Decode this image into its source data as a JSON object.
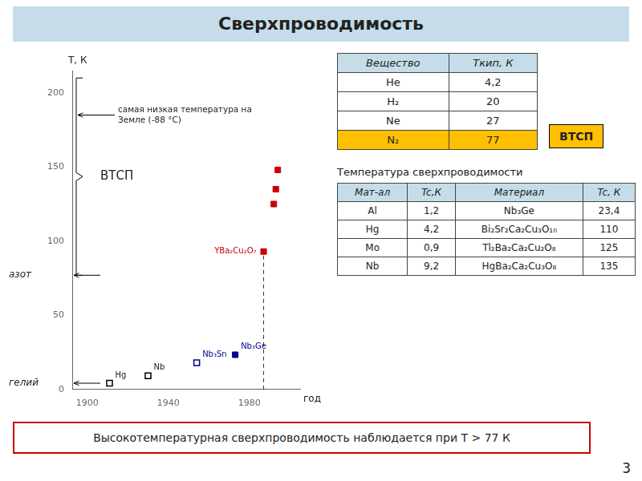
{
  "title": "Сверхпроводимость",
  "title_bg": "#c5dde8",
  "page_bg": "#ffffff",
  "chart_data": {
    "type": "scatter",
    "x_label": "год",
    "y_label": "Т, К",
    "xlim": [
      1893,
      2005
    ],
    "ylim": [
      0,
      215
    ],
    "xticks": [
      1900,
      1940,
      1980
    ],
    "yticks": [
      0,
      50,
      100,
      150,
      200
    ],
    "grid": false,
    "series": [
      {
        "color": "#000000",
        "marker": "square_open",
        "x": [
          1911,
          1930
        ],
        "values": [
          4.2,
          9.2
        ]
      },
      {
        "color": "#00008B",
        "marker": "square_open",
        "x": [
          1954
        ],
        "values": [
          18.0
        ]
      },
      {
        "color": "#00008B",
        "marker": "square",
        "x": [
          1973
        ],
        "values": [
          23.4
        ]
      },
      {
        "color": "#cc0000",
        "marker": "square",
        "x": [
          1987,
          1992,
          1993,
          1994
        ],
        "values": [
          93,
          125,
          135,
          148
        ]
      }
    ],
    "point_labels": [
      {
        "text": "Hg",
        "x": 1911,
        "y": 4.2
      },
      {
        "text": "Nb",
        "x": 1930,
        "y": 9.2
      },
      {
        "text": "Nb₃Sn",
        "x": 1954,
        "y": 18.0,
        "color": "#00008B"
      },
      {
        "text": "Nb₃Ge",
        "x": 1973,
        "y": 23.4,
        "color": "#00008B"
      },
      {
        "text": "YBa₂Cu₂O₇",
        "x": 1987,
        "y": 93,
        "color": "#cc0000"
      }
    ],
    "drop_line": {
      "x": 1987,
      "y": 93
    },
    "reference_lines": [
      {
        "y": 77,
        "label": "азот"
      },
      {
        "y": 4.2,
        "label": "гелий"
      }
    ],
    "range_brace": {
      "from": 77,
      "to": 210,
      "label": "ВТСП"
    },
    "arrow_note": {
      "y": 185,
      "text": "самая низкая температура на\nЗемле (-88 °C)"
    }
  },
  "tables": [
    {
      "header": [
        "Вещество",
        "Tкип, К"
      ],
      "header_color": "#c5dde8",
      "rows": [
        [
          "He",
          "4,2"
        ],
        [
          "H₂",
          "20"
        ],
        [
          "Ne",
          "27"
        ],
        [
          "N₂",
          "77"
        ]
      ],
      "highlight_row": 3,
      "highlight_color": "#FFC000"
    },
    {
      "title": "Температура сверхпроводимости",
      "header": [
        "Мат-ал",
        "Tc,К",
        "Материал",
        "Tc, К"
      ],
      "header_color": "#c5dde8",
      "rows": [
        [
          "Al",
          "1,2",
          "Nb₃Ge",
          "23,4"
        ],
        [
          "Hg",
          "4,2",
          "Bi₂Sr₂Ca₂Cu₃O₁₀",
          "110"
        ],
        [
          "Mo",
          "0,9",
          "Tl₂Ba₂Ca₂Cu₂O₈",
          "125"
        ],
        [
          "Nb",
          "9,2",
          "HgBa₂Ca₂Cu₃O₈",
          "135"
        ]
      ]
    }
  ],
  "badge": {
    "text": "ВТСП",
    "color": "#FFC000"
  },
  "footer": {
    "text": "Высокотемпературная сверхпроводимость наблюдается при Т > 77 К",
    "border_color": "#cc0000"
  },
  "page_number": "3"
}
